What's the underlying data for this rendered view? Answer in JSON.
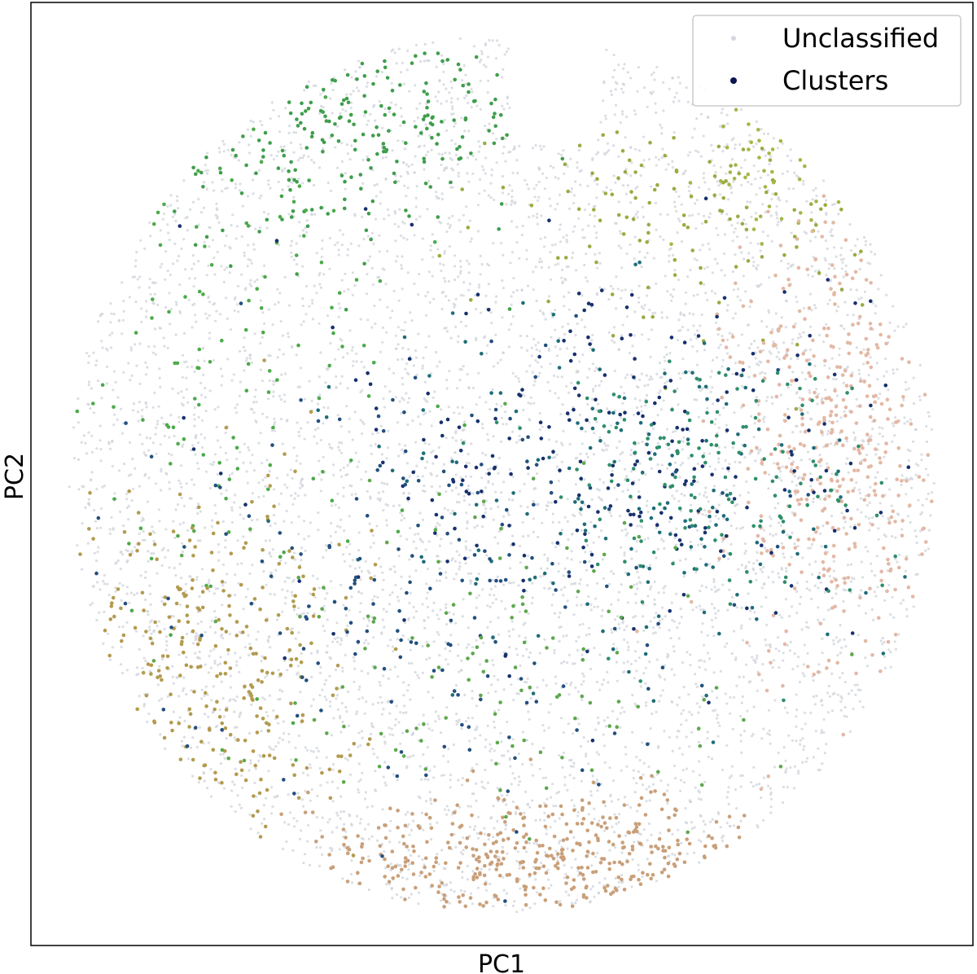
{
  "chart_data": {
    "type": "scatter",
    "title": "",
    "xlabel": "PC1",
    "ylabel": "PC2",
    "xlim": [
      -1,
      1
    ],
    "ylim": [
      -1,
      1
    ],
    "grid": false,
    "ticks_visible": false,
    "legend": {
      "placement": "top-right",
      "entries": [
        {
          "label": "Unclassified",
          "color": "#d5d8de"
        },
        {
          "label": "Clusters",
          "color": "#0b1550"
        }
      ]
    },
    "series": [
      {
        "name": "Unclassified",
        "color": "#cfd3da",
        "distribution": {
          "shape": "disc",
          "center": [
            0.0,
            0.0
          ],
          "radius_x": 0.92,
          "radius_y": 0.93,
          "count": 5500
        }
      },
      {
        "name": "Clusters",
        "color": "#0b1550",
        "groups": [
          {
            "color": "#3f9e4c",
            "center": [
              -0.38,
              0.76
            ],
            "spread": [
              0.24,
              0.12
            ],
            "count": 200
          },
          {
            "color": "#4caa4a",
            "center": [
              -0.6,
              0.25
            ],
            "spread": [
              0.2,
              0.28
            ],
            "count": 110
          },
          {
            "color": "#9aab42",
            "center": [
              0.42,
              0.56
            ],
            "spread": [
              0.2,
              0.12
            ],
            "count": 110
          },
          {
            "color": "#a9b447",
            "center": [
              0.55,
              0.66
            ],
            "spread": [
              0.08,
              0.07
            ],
            "count": 40
          },
          {
            "color": "#e3b8a5",
            "center": [
              0.72,
              0.05
            ],
            "spread": [
              0.12,
              0.26
            ],
            "count": 380
          },
          {
            "color": "#c9a07a",
            "center": [
              0.1,
              -0.82
            ],
            "spread": [
              0.28,
              0.07
            ],
            "count": 380
          },
          {
            "color": "#b39b4f",
            "center": [
              -0.62,
              -0.42
            ],
            "spread": [
              0.16,
              0.2
            ],
            "count": 260
          },
          {
            "color": "#17306e",
            "center": [
              0.22,
              0.05
            ],
            "spread": [
              0.28,
              0.22
            ],
            "count": 230
          },
          {
            "color": "#1f6d7a",
            "center": [
              0.3,
              -0.05
            ],
            "spread": [
              0.28,
              0.22
            ],
            "count": 160
          },
          {
            "color": "#23507e",
            "center": [
              -0.18,
              -0.22
            ],
            "spread": [
              0.28,
              0.24
            ],
            "count": 180
          },
          {
            "color": "#5ea84e",
            "center": [
              -0.05,
              -0.38
            ],
            "spread": [
              0.3,
              0.18
            ],
            "count": 120
          },
          {
            "color": "#2f8f6a",
            "center": [
              0.42,
              0.0
            ],
            "spread": [
              0.18,
              0.14
            ],
            "count": 150
          }
        ]
      }
    ]
  }
}
